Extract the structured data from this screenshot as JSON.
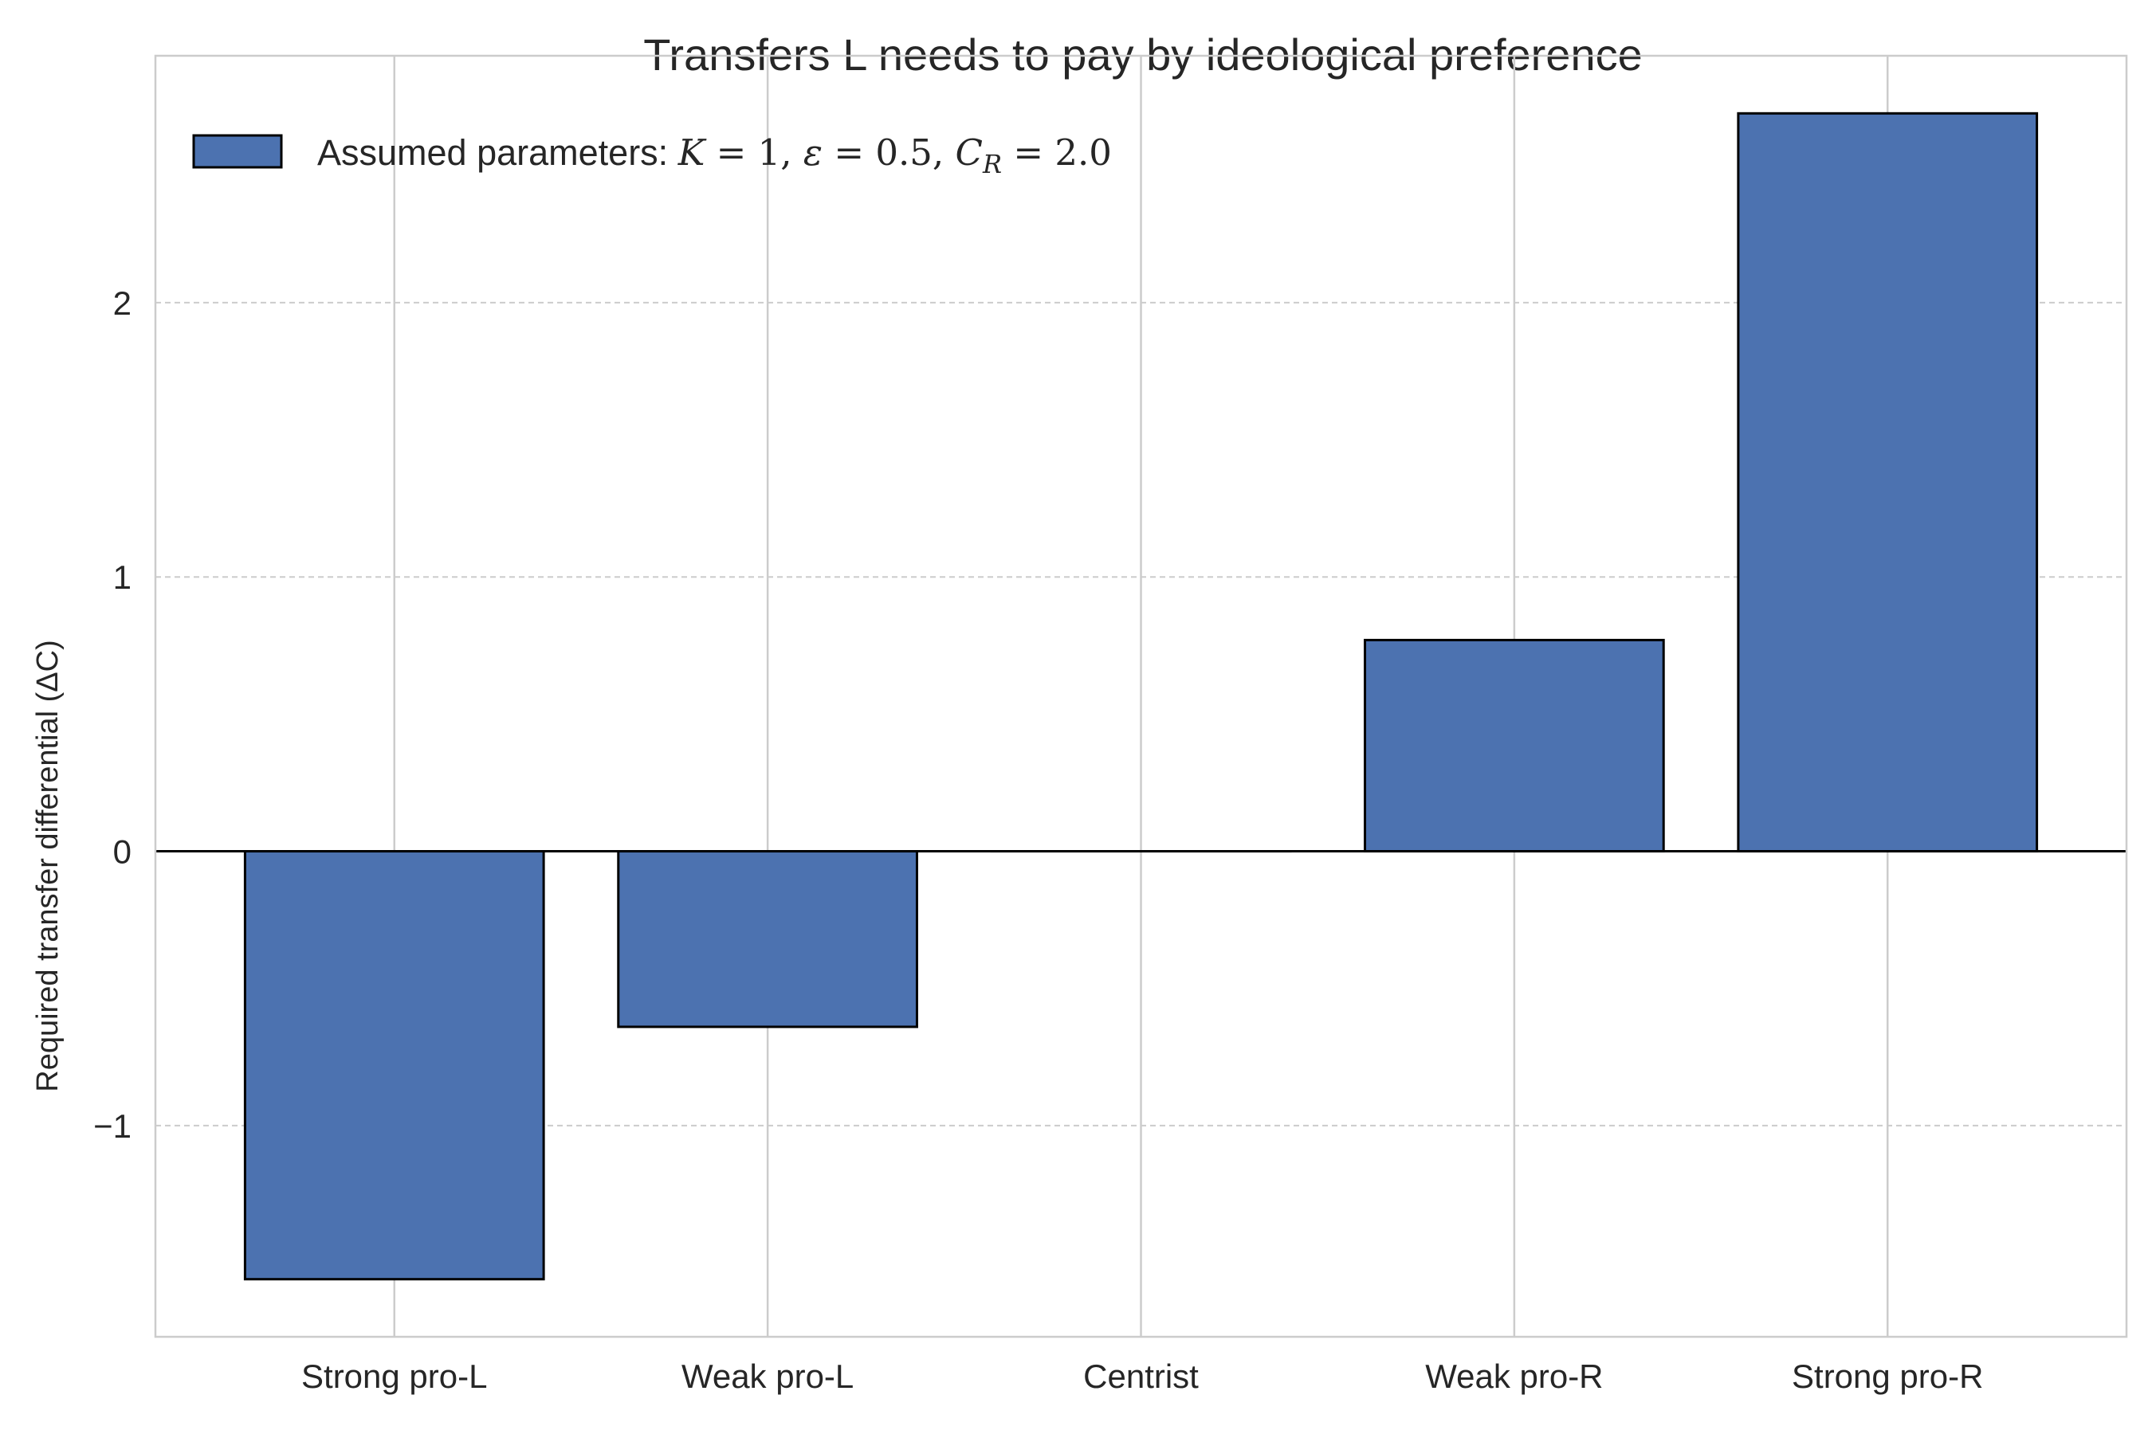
{
  "chart_data": {
    "type": "bar",
    "title": "Transfers L needs to pay by ideological preference",
    "xlabel": "",
    "ylabel": "Required transfer differential (ΔC)",
    "categories": [
      "Strong pro-L",
      "Weak pro-L",
      "Centrist",
      "Weak pro-R",
      "Strong pro-R"
    ],
    "series": [
      {
        "name": "Assumed parameters: K = 1, ε = 0.5, C_R = 2.0",
        "values": [
          -1.56,
          -0.64,
          0.0,
          0.77,
          2.69
        ]
      }
    ],
    "yticks": [
      -1,
      0,
      1,
      2
    ],
    "ytick_labels": [
      "−1",
      "0",
      "1",
      "2"
    ],
    "ylim": [
      -1.77,
      2.9
    ],
    "grid": true,
    "legend_position": "top-left",
    "colors": {
      "bar_fill": "#4c72b0",
      "bar_edge": "#000000",
      "grid": "#cccccc",
      "axes_edge": "#cccccc",
      "zero_line": "#000000"
    }
  },
  "legend": {
    "prefix": "Assumed parameters: ",
    "K_sym": "K",
    "K_val": " = 1, ",
    "eps_sym": "ε",
    "eps_val": " = 0.5, ",
    "C_sym": "C",
    "C_sub": "R",
    "C_val": " = 2.0"
  }
}
